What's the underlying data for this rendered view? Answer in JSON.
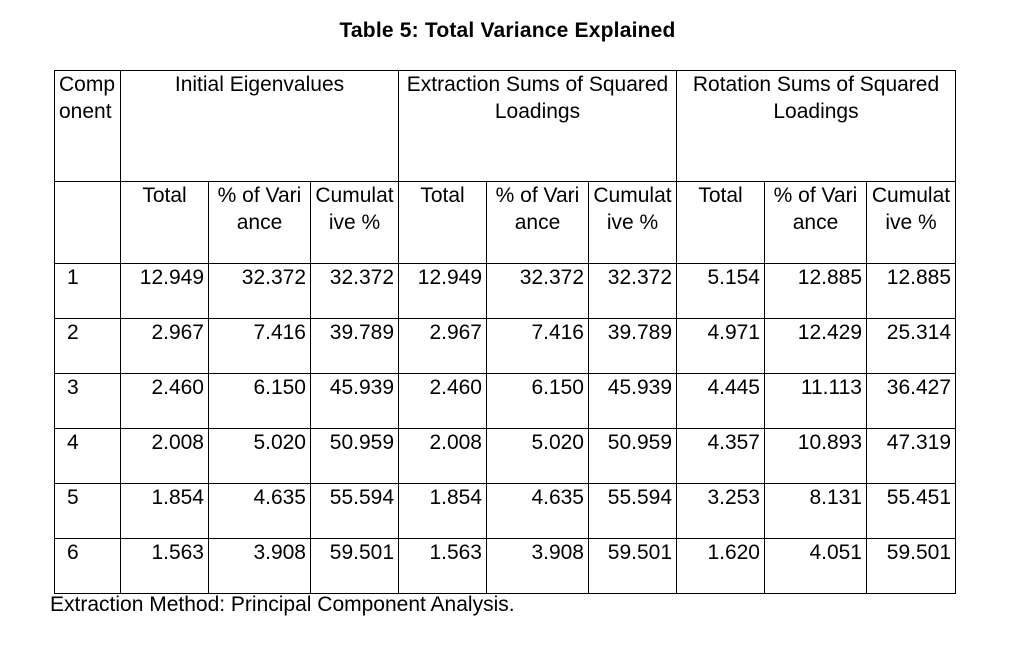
{
  "title": "Table 5: Total Variance Explained",
  "header": {
    "component": "Component",
    "groups": [
      "Initial Eigenvalues",
      "Extraction Sums of Squared Loadings",
      "Rotation Sums of Squared Loadings"
    ],
    "subcolumns": [
      "Total",
      "% of Variance",
      "Cumulative %"
    ]
  },
  "rows": [
    {
      "component": "1",
      "cells": [
        "12.949",
        "32.372",
        "32.372",
        "12.949",
        "32.372",
        "32.372",
        "5.154",
        "12.885",
        "12.885"
      ]
    },
    {
      "component": "2",
      "cells": [
        "2.967",
        "7.416",
        "39.789",
        "2.967",
        "7.416",
        "39.789",
        "4.971",
        "12.429",
        "25.314"
      ]
    },
    {
      "component": "3",
      "cells": [
        "2.460",
        "6.150",
        "45.939",
        "2.460",
        "6.150",
        "45.939",
        "4.445",
        "11.113",
        "36.427"
      ]
    },
    {
      "component": "4",
      "cells": [
        "2.008",
        "5.020",
        "50.959",
        "2.008",
        "5.020",
        "50.959",
        "4.357",
        "10.893",
        "47.319"
      ]
    },
    {
      "component": "5",
      "cells": [
        "1.854",
        "4.635",
        "55.594",
        "1.854",
        "4.635",
        "55.594",
        "3.253",
        "8.131",
        "55.451"
      ]
    },
    {
      "component": "6",
      "cells": [
        "1.563",
        "3.908",
        "59.501",
        "1.563",
        "3.908",
        "59.501",
        "1.620",
        "4.051",
        "59.501"
      ]
    }
  ],
  "footnote": "Extraction Method: Principal Component Analysis."
}
